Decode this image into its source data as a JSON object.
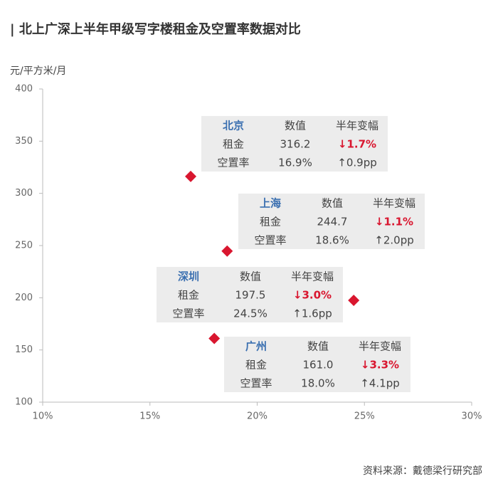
{
  "chart_data": {
    "type": "scatter",
    "title": "| 北上广深上半年甲级写字楼租金及空置率数据对比",
    "y_label": "元/平方米/月",
    "source": "资料来源：戴德梁行研究部",
    "xlim": [
      10,
      30
    ],
    "xticks": [
      {
        "value": 10,
        "label": "10%"
      },
      {
        "value": 15,
        "label": "15%"
      },
      {
        "value": 20,
        "label": "20%"
      },
      {
        "value": 25,
        "label": "25%"
      },
      {
        "value": 30,
        "label": "30%"
      }
    ],
    "ylim": [
      100,
      400
    ],
    "yticks": [
      100,
      150,
      200,
      250,
      300,
      350,
      400
    ],
    "color": "#d9162f",
    "x": [
      16.9,
      18.6,
      24.5,
      18.0
    ],
    "values": [
      316.2,
      244.7,
      197.5,
      161.0
    ],
    "annotations": [
      {
        "header": [
          "北京",
          "数值",
          "半年变幅"
        ],
        "rows": [
          [
            "租金",
            "316.2",
            "↓1.7%"
          ],
          [
            "空置率",
            "16.9%",
            "↑0.9pp"
          ]
        ]
      },
      {
        "header": [
          "上海",
          "数值",
          "半年变幅"
        ],
        "rows": [
          [
            "租金",
            "244.7",
            "↓1.1%"
          ],
          [
            "空置率",
            "18.6%",
            "↑2.0pp"
          ]
        ]
      },
      {
        "header": [
          "深圳",
          "数值",
          "半年变幅"
        ],
        "rows": [
          [
            "租金",
            "197.5",
            "↓3.0%"
          ],
          [
            "空置率",
            "24.5%",
            "↑1.6pp"
          ]
        ]
      },
      {
        "header": [
          "广州",
          "数值",
          "半年变幅"
        ],
        "rows": [
          [
            "租金",
            "161.0",
            "↓3.3%"
          ],
          [
            "空置率",
            "18.0%",
            "↑4.1pp"
          ]
        ]
      }
    ]
  }
}
